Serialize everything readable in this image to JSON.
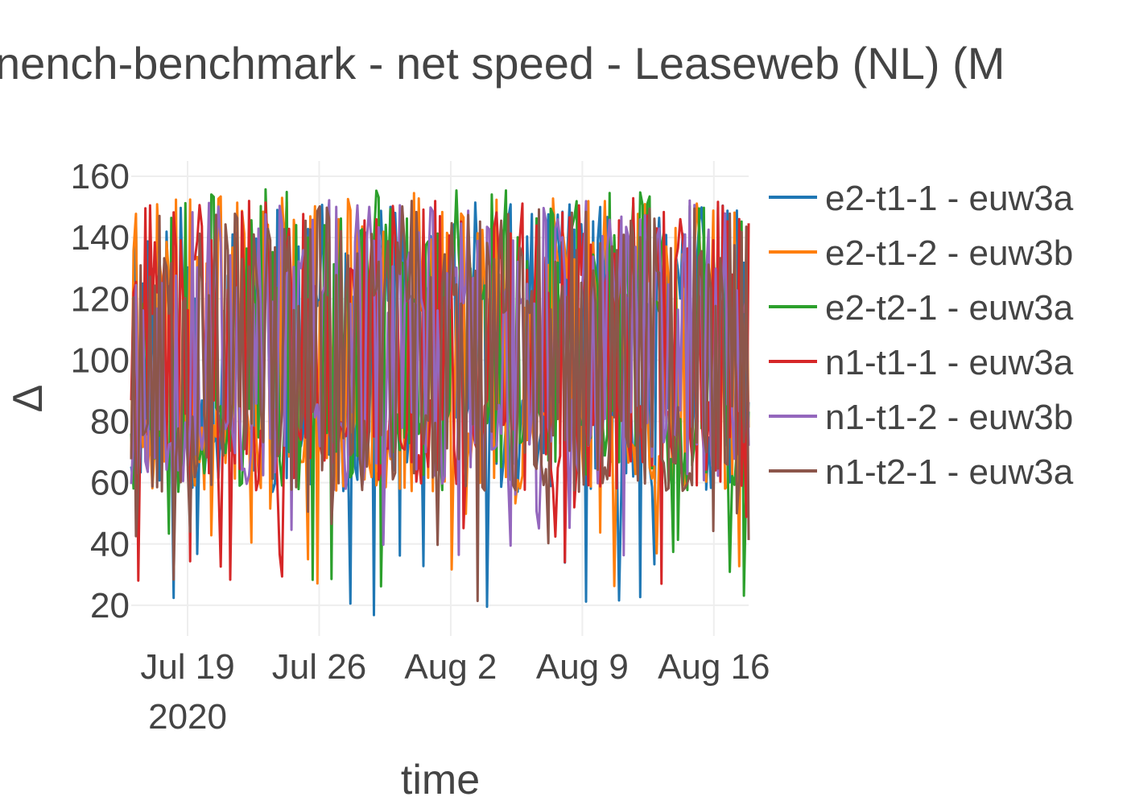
{
  "chart_data": {
    "type": "line",
    "title": "nench-benchmark - net speed - Leaseweb (NL) (M",
    "xlabel": "time",
    "ylabel": "Δ",
    "x_start": "2020-07-16",
    "x_end": "2020-08-17",
    "ylim": [
      10,
      165
    ],
    "yticks": [
      20,
      40,
      60,
      80,
      100,
      120,
      140,
      160
    ],
    "xticks": [
      {
        "date": "2020-07-19",
        "label": "Jul 19",
        "sublabel": "2020"
      },
      {
        "date": "2020-07-26",
        "label": "Jul 26",
        "sublabel": ""
      },
      {
        "date": "2020-08-02",
        "label": "Aug 2",
        "sublabel": ""
      },
      {
        "date": "2020-08-09",
        "label": "Aug 9",
        "sublabel": ""
      },
      {
        "date": "2020-08-16",
        "label": "Aug 16",
        "sublabel": ""
      }
    ],
    "grid": true,
    "legend_position": "right",
    "series": [
      {
        "name": "e2-t1-1 - euw3a",
        "color": "#1f77b4",
        "samples_per_day": 8,
        "min": 16,
        "max": 152,
        "seed": 11
      },
      {
        "name": "e2-t1-2 - euw3b",
        "color": "#ff7f0e",
        "samples_per_day": 8,
        "min": 26,
        "max": 155,
        "seed": 23
      },
      {
        "name": "e2-t2-1 - euw3a",
        "color": "#2ca02c",
        "samples_per_day": 8,
        "min": 19,
        "max": 156,
        "seed": 37
      },
      {
        "name": "n1-t1-1 - euw3a",
        "color": "#d62728",
        "samples_per_day": 8,
        "min": 22,
        "max": 153,
        "seed": 41
      },
      {
        "name": "n1-t1-2 - euw3b",
        "color": "#9467bd",
        "samples_per_day": 8,
        "min": 28,
        "max": 153,
        "seed": 53
      },
      {
        "name": "n1-t2-1 - euw3a",
        "color": "#8c564b",
        "samples_per_day": 8,
        "min": 21,
        "max": 152,
        "seed": 67
      }
    ]
  }
}
